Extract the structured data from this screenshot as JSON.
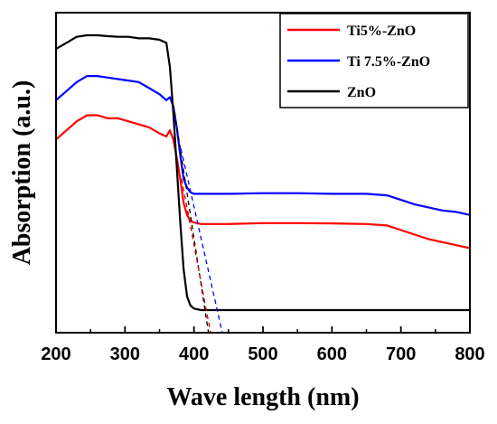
{
  "chart_data": {
    "type": "line",
    "title": "",
    "xlabel": "Wave length (nm)",
    "ylabel": "Absorption (a.u.)",
    "xlim": [
      200,
      800
    ],
    "ylim": [
      0,
      1
    ],
    "x_ticks": [
      200,
      300,
      400,
      500,
      600,
      700,
      800
    ],
    "x_tick_labels": [
      "200",
      "300",
      "400",
      "500",
      "600",
      "700",
      "800"
    ],
    "y_tick_labels_shown": false,
    "grid": false,
    "legend_position": "top-right",
    "series": [
      {
        "name": "Ti5%-ZnO",
        "color": "#ff0000",
        "x": [
          200,
          215,
          230,
          245,
          260,
          275,
          290,
          305,
          320,
          335,
          350,
          360,
          365,
          370,
          375,
          380,
          385,
          390,
          395,
          400,
          410,
          420,
          450,
          500,
          550,
          600,
          650,
          680,
          700,
          720,
          740,
          760,
          780,
          800
        ],
        "y": [
          0.61,
          0.64,
          0.67,
          0.69,
          0.69,
          0.68,
          0.68,
          0.67,
          0.66,
          0.65,
          0.63,
          0.62,
          0.64,
          0.61,
          0.55,
          0.48,
          0.4,
          0.36,
          0.34,
          0.335,
          0.33,
          0.33,
          0.33,
          0.333,
          0.333,
          0.332,
          0.33,
          0.325,
          0.31,
          0.295,
          0.28,
          0.27,
          0.26,
          0.25
        ]
      },
      {
        "name": "Ti 7.5%-ZnO",
        "color": "#0000ff",
        "x": [
          200,
          215,
          230,
          245,
          260,
          275,
          290,
          305,
          320,
          335,
          350,
          360,
          365,
          370,
          375,
          380,
          385,
          390,
          395,
          400,
          410,
          420,
          450,
          500,
          550,
          600,
          650,
          680,
          700,
          720,
          740,
          760,
          780,
          800
        ],
        "y": [
          0.74,
          0.77,
          0.8,
          0.82,
          0.82,
          0.815,
          0.81,
          0.805,
          0.8,
          0.78,
          0.76,
          0.74,
          0.75,
          0.72,
          0.65,
          0.56,
          0.48,
          0.45,
          0.435,
          0.43,
          0.43,
          0.43,
          0.43,
          0.432,
          0.432,
          0.43,
          0.43,
          0.425,
          0.41,
          0.395,
          0.385,
          0.375,
          0.37,
          0.36
        ]
      },
      {
        "name": "ZnO",
        "color": "#000000",
        "x": [
          200,
          215,
          230,
          245,
          260,
          275,
          290,
          305,
          320,
          335,
          350,
          360,
          365,
          370,
          375,
          380,
          385,
          390,
          395,
          400,
          410,
          420,
          450,
          500,
          550,
          600,
          650,
          700,
          750,
          800
        ],
        "y": [
          0.91,
          0.93,
          0.95,
          0.955,
          0.955,
          0.952,
          0.95,
          0.95,
          0.945,
          0.945,
          0.94,
          0.93,
          0.85,
          0.7,
          0.52,
          0.34,
          0.18,
          0.09,
          0.06,
          0.05,
          0.045,
          0.045,
          0.045,
          0.045,
          0.045,
          0.045,
          0.045,
          0.045,
          0.045,
          0.045
        ]
      }
    ],
    "annotations": [
      {
        "type": "dashed-tangent",
        "series": "ZnO",
        "color": "#000000",
        "x": [
          372,
          421
        ],
        "y": [
          0.7,
          0.0
        ]
      },
      {
        "type": "dashed-tangent",
        "series": "Ti5%-ZnO",
        "color": "#cc0000",
        "x": [
          382,
          424
        ],
        "y": [
          0.48,
          0.0
        ]
      },
      {
        "type": "dashed-tangent",
        "series": "Ti 7.5%-ZnO",
        "color": "#0000ff",
        "x": [
          381,
          441
        ],
        "y": [
          0.58,
          0.0
        ]
      }
    ]
  }
}
